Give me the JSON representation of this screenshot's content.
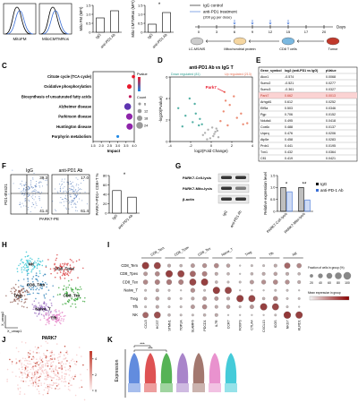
{
  "panel_letters": [
    "C",
    "D",
    "E",
    "F",
    "G",
    "H",
    "I",
    "J",
    "K"
  ],
  "histograms": [
    "MitoFM",
    "MitoCMTMRos"
  ],
  "timeline": {
    "legend": [
      "IgG control",
      "anti-PD1 treatment"
    ],
    "dose": "(200 µg per dose)",
    "days": [
      "0",
      "3",
      "6",
      "9",
      "12",
      "15",
      "17",
      "20"
    ],
    "days_label": "Days",
    "steps": [
      "LC-MS/MS",
      "Mitochondrial protein",
      "CD8 T cells",
      "Tumor"
    ]
  },
  "chart_data": [
    {
      "type": "bar",
      "ylabel": "Mito FM (MFI)",
      "categories": [
        "IgG",
        "anti-PD1 Ab"
      ],
      "values": [
        0.8,
        1.2
      ],
      "color": "#ffffff",
      "ylim": [
        0,
        1.5
      ],
      "yticks": [
        0,
        0.5,
        {
          "value": 1,
          "label": "1.0"
        },
        1.5
      ]
    },
    {
      "type": "bar",
      "ylabel": "Mito CMTMRos (MFI)",
      "categories": [
        "IgG",
        "anti-PD1 Ab"
      ],
      "values": [
        0.45,
        1.1
      ],
      "color": "#ffffff",
      "ylim": [
        0,
        1.5
      ],
      "yticks": [
        0,
        0.5,
        {
          "value": 1,
          "label": "1.0"
        },
        1.5
      ],
      "annotation": "*"
    },
    {
      "type": "dot",
      "categories": [
        "Citrate cycle (TCA cycle)",
        "Oxidative phosphorylation",
        "Biosynthesis of unsaturated fatty acids",
        "Alzheimer disease",
        "Parkinson disease",
        "Huntington disease",
        "Porphyrin metabolism"
      ],
      "values": [
        3.95,
        3.7,
        3.75,
        3.6,
        3.7,
        3.72,
        3.0
      ],
      "counts": [
        8,
        14,
        6,
        24,
        22,
        22,
        6
      ],
      "colors": [
        "#e8192c",
        "#e8192c",
        "#c2185b",
        "#5e35b1",
        "#8e24aa",
        "#8e24aa",
        "#1e88e5"
      ],
      "xlabel": "Impact",
      "xlim": [
        1.5,
        4
      ],
      "xticks": [
        1.5,
        {
          "value": 2,
          "label": "2.0"
        },
        2.5,
        {
          "value": 3,
          "label": "3.0"
        },
        3.5,
        {
          "value": 4,
          "label": "4.0"
        }
      ],
      "color_legend_title": "Pvalue",
      "size_legend_title": "Count",
      "size_legend": [
        6,
        12,
        18,
        24
      ]
    },
    {
      "type": "scatter",
      "title": "anti-PD1 Ab vs IgG T",
      "xlabel": "log2(Fold Change)",
      "ylabel": "-log10(Pvalue)",
      "xlim": [
        -4,
        4
      ],
      "xticks": [
        -4,
        -2,
        0,
        2,
        4
      ],
      "ylim": [
        0,
        6
      ],
      "yticks": [
        0,
        2,
        4,
        6
      ],
      "annotation": "Park7",
      "series": [
        {
          "name": "Down regulated (81)",
          "color": "#2a9d8f",
          "x": [
            -3.2,
            -2.5,
            -2.1,
            -1.8,
            -1.5,
            -1.2,
            -2.8,
            -1.6,
            -1.1,
            -0.9
          ],
          "values": [
            3.1,
            2.4,
            4.0,
            1.8,
            2.6,
            1.5,
            1.4,
            3.5,
            2.1,
            1.6
          ]
        },
        {
          "name": "Up regulated (213)",
          "color": "#e76f51",
          "x": [
            1.3,
            2.5,
            1.8,
            3.1,
            1.2,
            2.2,
            0.9,
            1.6,
            2.9,
            1.4,
            3.5
          ],
          "values": [
            4.6,
            2.2,
            3.4,
            1.6,
            2.8,
            4.2,
            1.9,
            1.5,
            2.6,
            3.8,
            1.7
          ]
        },
        {
          "color": "#9e9e9e",
          "x": [
            -0.6,
            -0.3,
            0.2,
            0.5,
            -0.1,
            0.4,
            -0.8,
            0.7,
            0.1,
            -0.4,
            0.3,
            0.6
          ],
          "values": [
            0.8,
            1.1,
            0.5,
            1.2,
            0.3,
            0.9,
            0.6,
            0.4,
            1.3,
            0.2,
            0.7,
            1.0
          ]
        }
      ]
    },
    {
      "type": "bar",
      "ylabel": "PARK7+PD1+ CD8+T %",
      "categories": [
        "IgG",
        "anti-PD1 Ab"
      ],
      "values": [
        48,
        34
      ],
      "color": "#ffffff",
      "ylim": [
        0,
        80
      ],
      "yticks": [
        0,
        20,
        40,
        60,
        80
      ],
      "annotation": "*"
    },
    {
      "type": "bar",
      "ylabel": "Relative expression level",
      "categories": [
        "PARK7-Cell-lysis",
        "PARK7-Mito-lysis"
      ],
      "series": [
        {
          "name": "IgG",
          "color": "#000000",
          "values": [
            1.0,
            1.0
          ]
        },
        {
          "name": "anti-PD-1 Ab",
          "color": "#3b6fd6",
          "values": [
            0.82,
            0.48
          ]
        }
      ],
      "ylim": [
        0,
        1.5
      ],
      "yticks": [
        0,
        0.5,
        {
          "value": 1,
          "label": "1.0"
        },
        1.5
      ],
      "annotations": [
        "*",
        "**"
      ]
    }
  ],
  "flow": {
    "groups": [
      "IgG",
      "anti-PD1 Ab"
    ],
    "quadrants": [
      [
        "39.3",
        "41.4"
      ],
      [
        "17.0",
        "61.4"
      ]
    ],
    "ylabel": "PD1-BV421",
    "xlabel": "PARK7-PE"
  },
  "blot": {
    "rows": [
      "PARK7-Cell-lysis",
      "PARK7-Mito-lysis",
      "β-actin"
    ],
    "lanes": [
      "IgG",
      "anti-PD1 Ab"
    ]
  },
  "table": {
    "header": [
      "Gene_symbol",
      "log2 (anti-PD1 vs IgG)",
      "pValue"
    ],
    "highlight_row": 3,
    "rows": [
      [
        "Atox1",
        "-0.574",
        "0.0068"
      ],
      [
        "Sumo2",
        "-0.521",
        "0.0277"
      ],
      [
        "Sumo3",
        "-0.361",
        "0.0327"
      ],
      [
        "Park7",
        "0.662",
        "0.0013"
      ],
      [
        "Arhgdi1",
        "0.612",
        "0.0252"
      ],
      [
        "Eif5a",
        "0.503",
        "0.0346"
      ],
      [
        "Pgp",
        "0.706",
        "0.0152"
      ],
      [
        "Ndufa4",
        "0.495",
        "0.0418"
      ],
      [
        "Cox6c",
        "0.488",
        "0.0137"
      ],
      [
        "Uqcrq",
        "0.476",
        "0.0206"
      ],
      [
        "Atp5e",
        "0.458",
        "0.0283"
      ],
      [
        "Prdx1",
        "0.441",
        "0.0195"
      ],
      [
        "Txn1",
        "0.432",
        "0.0364"
      ],
      [
        "Cfl1",
        "0.419",
        "0.0421"
      ]
    ]
  },
  "umap": {
    "clusters": [
      "CD8_Tem",
      "CD8_Tpex",
      "CD8_Tex",
      "Naive_T",
      "Treg",
      "Tfh",
      "NK"
    ],
    "colors": [
      "#1f77b4",
      "#d62728",
      "#2ca02c",
      "#9467bd",
      "#8c564b",
      "#e377c2",
      "#17becf"
    ],
    "xlabel": "X_umap1",
    "ylabel": "X_umap2"
  },
  "dotplot": {
    "rows": [
      "CD8_Tem",
      "CD8_Tpex",
      "CD8_Tex",
      "Naive_T",
      "Treg",
      "Tfh",
      "NK"
    ],
    "groups": [
      "CD8_Tem",
      "CD8_Tpex",
      "CD8_Tex",
      "Naive_T",
      "Treg",
      "Tfh",
      "NK"
    ],
    "genes": [
      "CCL5",
      "HCST",
      "STMN1",
      "TOP2A",
      "SLAMF6",
      "PDCD1",
      "IL7R",
      "CCR7",
      "FOXP3",
      "CTLA4",
      "CXCL13",
      "ICOS",
      "NKG7",
      "KLRD1"
    ],
    "fraction": [
      [
        85,
        80,
        20,
        15,
        30,
        35,
        40,
        25,
        5,
        10,
        10,
        20,
        60,
        40
      ],
      [
        30,
        40,
        85,
        80,
        60,
        45,
        20,
        15,
        5,
        15,
        20,
        25,
        20,
        15
      ],
      [
        40,
        45,
        50,
        45,
        80,
        85,
        15,
        10,
        10,
        30,
        35,
        40,
        35,
        20
      ],
      [
        10,
        20,
        10,
        5,
        35,
        10,
        85,
        80,
        5,
        5,
        5,
        10,
        10,
        5
      ],
      [
        15,
        25,
        15,
        10,
        20,
        30,
        30,
        20,
        85,
        80,
        15,
        40,
        10,
        10
      ],
      [
        10,
        20,
        10,
        10,
        30,
        40,
        20,
        25,
        10,
        30,
        85,
        80,
        10,
        5
      ],
      [
        60,
        75,
        15,
        10,
        10,
        15,
        20,
        5,
        5,
        5,
        5,
        10,
        90,
        85
      ]
    ],
    "size_legend_title": "Fraction of cells in group (%)",
    "size_legend": [
      20,
      40,
      60,
      80,
      100
    ],
    "color_legend_title": "Mean expression in group"
  },
  "park7_umap": {
    "title": "PARK7",
    "colorbar_ticks": [
      0,
      2,
      4
    ]
  },
  "violin": {
    "ylabel": "Expression",
    "significance": [
      "***",
      "***"
    ],
    "colors": [
      "#3b6fd6",
      "#d62728",
      "#2ca02c",
      "#9467bd",
      "#8c564b",
      "#e377c2",
      "#17becf"
    ]
  }
}
